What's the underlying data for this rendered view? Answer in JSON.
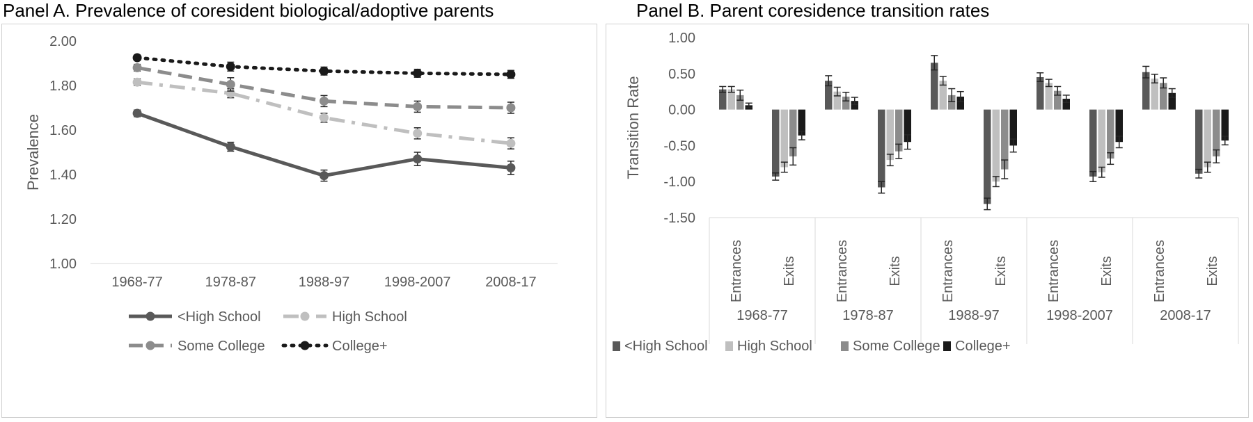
{
  "panels": {
    "a": {
      "title": "Panel A. Prevalence of coresident biological/adoptive parents"
    },
    "b": {
      "title": "Panel B. Parent coresidence transition rates"
    }
  },
  "chart_data": [
    {
      "type": "line",
      "title": "Panel A. Prevalence of coresident biological/adoptive parents",
      "xlabel": "",
      "ylabel": "Prevalence",
      "categories": [
        "1968-77",
        "1978-87",
        "1988-97",
        "1998-2007",
        "2008-17"
      ],
      "ylim": [
        1.0,
        2.0
      ],
      "yticks": [
        "1.00",
        "1.20",
        "1.40",
        "1.60",
        "1.80",
        "2.00"
      ],
      "legend": "bottom",
      "series": [
        {
          "name": "<High School",
          "values": [
            1.675,
            1.525,
            1.395,
            1.47,
            1.43
          ],
          "err": [
            0.015,
            0.02,
            0.025,
            0.03,
            0.03
          ],
          "color": "#595959",
          "dash": "solid"
        },
        {
          "name": "High School",
          "values": [
            1.815,
            1.765,
            1.655,
            1.585,
            1.54
          ],
          "err": [
            0.015,
            0.02,
            0.02,
            0.025,
            0.025
          ],
          "color": "#bfbfbf",
          "dash": "dash-dot"
        },
        {
          "name": "Some College",
          "values": [
            1.88,
            1.805,
            1.73,
            1.705,
            1.7
          ],
          "err": [
            0.015,
            0.03,
            0.025,
            0.025,
            0.025
          ],
          "color": "#8c8c8c",
          "dash": "dash"
        },
        {
          "name": "College+",
          "values": [
            1.925,
            1.885,
            1.865,
            1.855,
            1.85
          ],
          "err": [
            0.012,
            0.02,
            0.018,
            0.018,
            0.018
          ],
          "color": "#1a1a1a",
          "dash": "dot"
        }
      ]
    },
    {
      "type": "bar",
      "title": "Panel B. Parent coresidence transition rates",
      "ylabel": "Transition Rate",
      "ylim": [
        -1.5,
        1.0
      ],
      "yticks": [
        "-1.50",
        "-1.00",
        "-0.50",
        "0.00",
        "0.50",
        "1.00"
      ],
      "periods": [
        "1968-77",
        "1978-87",
        "1988-97",
        "1998-2007",
        "2008-17"
      ],
      "subcategories": [
        "Entrances",
        "Exits"
      ],
      "legend": "bottom",
      "series": [
        {
          "name": "<High School",
          "color": "#595959",
          "values": [
            0.28,
            -0.93,
            0.4,
            -1.08,
            0.65,
            -1.31,
            0.45,
            -0.93,
            0.52,
            -0.89
          ],
          "err": [
            0.04,
            0.05,
            0.07,
            0.08,
            0.1,
            0.08,
            0.06,
            0.07,
            0.08,
            0.06
          ]
        },
        {
          "name": "High School",
          "color": "#bfbfbf",
          "values": [
            0.28,
            -0.8,
            0.25,
            -0.7,
            0.4,
            -1.0,
            0.37,
            -0.87,
            0.43,
            -0.8
          ],
          "err": [
            0.04,
            0.07,
            0.06,
            0.08,
            0.06,
            0.07,
            0.05,
            0.07,
            0.06,
            0.07
          ]
        },
        {
          "name": "Some College",
          "color": "#8c8c8c",
          "values": [
            0.2,
            -0.65,
            0.18,
            -0.58,
            0.2,
            -0.83,
            0.26,
            -0.68,
            0.37,
            -0.65
          ],
          "err": [
            0.07,
            0.12,
            0.06,
            0.1,
            0.09,
            0.13,
            0.06,
            0.08,
            0.07,
            0.09
          ]
        },
        {
          "name": "College+",
          "color": "#1a1a1a",
          "values": [
            0.06,
            -0.36,
            0.12,
            -0.45,
            0.18,
            -0.5,
            0.15,
            -0.45,
            0.23,
            -0.43
          ],
          "err": [
            0.03,
            0.06,
            0.05,
            0.1,
            0.07,
            0.09,
            0.05,
            0.08,
            0.06,
            0.06
          ]
        }
      ]
    }
  ]
}
